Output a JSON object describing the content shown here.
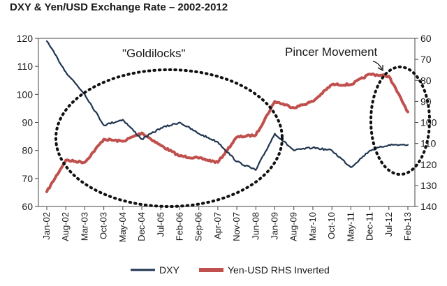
{
  "chart_data": {
    "type": "line",
    "title": "DXY & Yen/USD Exchange Rate – 2002-2012",
    "x_ticks": [
      "Jan-02",
      "Aug-02",
      "Mar-03",
      "Oct-03",
      "May-04",
      "Dec-04",
      "Jul-05",
      "Feb-06",
      "Sep-06",
      "Apr-07",
      "Nov-07",
      "Jun-08",
      "Jan-09",
      "Aug-09",
      "Mar-10",
      "Oct-10",
      "May-11",
      "Dec-11",
      "Jul-12",
      "Feb-13"
    ],
    "y_left": {
      "min": 60,
      "max": 120,
      "ticks": [
        "60",
        "70",
        "80",
        "90",
        "100",
        "110",
        "120"
      ]
    },
    "y_right": {
      "min": 60,
      "max": 140,
      "inverted": true,
      "ticks": [
        "60",
        "70",
        "80",
        "90",
        "100",
        "110",
        "120",
        "130",
        "140"
      ]
    },
    "legend_position": "bottom",
    "series": [
      {
        "name": "DXY",
        "axis": "left",
        "color": "#1f3550",
        "x": [
          0,
          1,
          2,
          3,
          4,
          5,
          6,
          7,
          8,
          9,
          10,
          11,
          12,
          13,
          14,
          15,
          16,
          17,
          18,
          19
        ],
        "values": [
          119,
          108,
          100,
          89,
          91,
          84,
          88,
          90,
          86,
          83,
          76,
          73,
          86,
          80,
          81,
          80,
          74,
          80,
          82,
          82
        ]
      },
      {
        "name": "Yen-USD RHS Inverted",
        "axis": "right",
        "color": "#c0504d",
        "x": [
          0,
          1,
          2,
          3,
          4,
          5,
          6,
          7,
          8,
          9,
          10,
          11,
          12,
          13,
          14,
          15,
          16,
          17,
          18,
          19
        ],
        "values": [
          133,
          118,
          119,
          108,
          109,
          105,
          111,
          116,
          117,
          119,
          107,
          106,
          90,
          93,
          90,
          82,
          82,
          77,
          78,
          95
        ]
      }
    ],
    "annotations": [
      {
        "text": "\"Goldilocks\""
      },
      {
        "text": "Pincer Movement"
      }
    ]
  }
}
